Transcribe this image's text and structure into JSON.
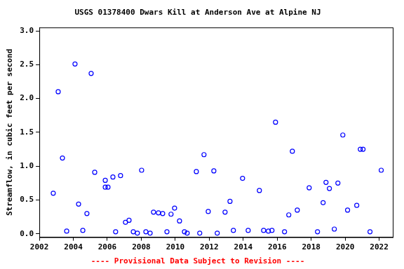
{
  "chart_data": {
    "type": "scatter",
    "title": "USGS 01378400 Dwars Kill at Anderson Ave at Alpine NJ",
    "y_label": "Streamflow, in cubic feet per second",
    "annotation": "---- Provisional Data Subject to Revision ----",
    "x": [
      2002.82,
      2003.11,
      2003.36,
      2003.61,
      2004.1,
      2004.31,
      2004.56,
      2004.8,
      2005.05,
      2005.26,
      2005.88,
      2005.88,
      2006.04,
      2006.33,
      2006.49,
      2006.78,
      2007.07,
      2007.28,
      2007.53,
      2007.77,
      2008.02,
      2008.27,
      2008.52,
      2008.72,
      2009.01,
      2009.26,
      2009.51,
      2009.75,
      2009.96,
      2010.25,
      2010.54,
      2010.7,
      2011.24,
      2011.44,
      2011.69,
      2011.94,
      2012.27,
      2012.47,
      2012.93,
      2013.22,
      2013.42,
      2013.96,
      2014.29,
      2014.95,
      2015.2,
      2015.48,
      2015.69,
      2015.9,
      2016.43,
      2016.68,
      2016.89,
      2017.18,
      2017.88,
      2018.37,
      2018.7,
      2018.87,
      2019.07,
      2019.36,
      2019.57,
      2019.86,
      2020.14,
      2020.68,
      2020.89,
      2021.05,
      2021.46,
      2022.12
    ],
    "values": [
      0.6,
      2.1,
      1.12,
      0.04,
      2.51,
      0.44,
      0.05,
      0.3,
      2.37,
      0.91,
      0.79,
      0.69,
      0.69,
      0.84,
      0.03,
      0.86,
      0.17,
      0.2,
      0.03,
      0.01,
      0.94,
      0.03,
      0.01,
      0.32,
      0.31,
      0.3,
      0.03,
      0.29,
      0.38,
      0.19,
      0.03,
      0.01,
      0.92,
      0.01,
      1.17,
      0.33,
      0.93,
      0.01,
      0.32,
      0.48,
      0.05,
      0.82,
      0.05,
      0.64,
      0.05,
      0.04,
      0.05,
      1.65,
      0.03,
      0.28,
      1.22,
      0.35,
      0.68,
      0.03,
      0.46,
      0.76,
      0.67,
      0.07,
      0.75,
      1.46,
      0.35,
      0.42,
      1.25,
      1.25,
      0.03,
      0.94
    ],
    "color": "#0000ff",
    "marker": "open_circle",
    "xlim": [
      2002,
      2022.8
    ],
    "xticks": [
      2002,
      2004,
      2006,
      2008,
      2010,
      2012,
      2014,
      2016,
      2018,
      2020,
      2022
    ],
    "ylim": [
      -0.05,
      3.05
    ],
    "yticks": [
      {
        "value": 0,
        "label": "0.0"
      },
      {
        "value": 0.5,
        "label": "0.5"
      },
      {
        "value": 1,
        "label": "1.0"
      },
      {
        "value": 1.5,
        "label": "1.5"
      },
      {
        "value": 2,
        "label": "2.0"
      },
      {
        "value": 2.5,
        "label": "2.5"
      },
      {
        "value": 3,
        "label": "3.0"
      }
    ],
    "grid": false
  }
}
